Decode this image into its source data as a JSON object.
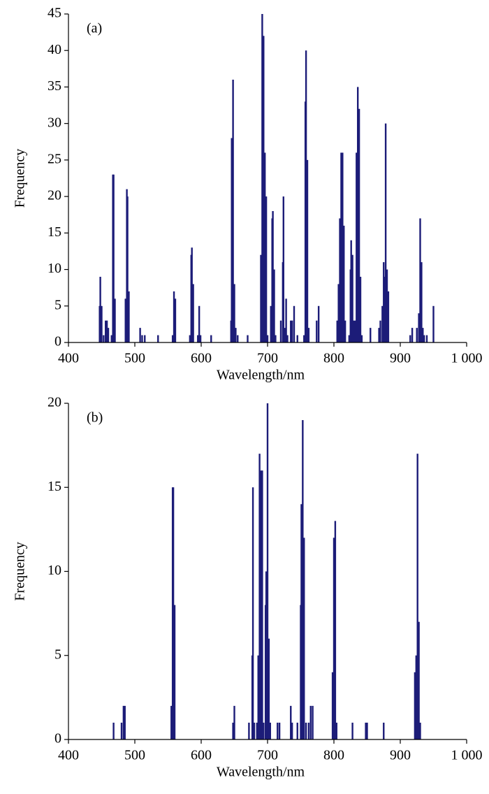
{
  "chart_data": [
    {
      "type": "bar",
      "annotation": "(a)",
      "xlabel": "Wavelength/nm",
      "ylabel": "Frequency",
      "color": "#1c1c78",
      "x": [
        447,
        448,
        450,
        453,
        456,
        458,
        460,
        465,
        467,
        468,
        470,
        486,
        488,
        489,
        491,
        508,
        511,
        515,
        535,
        557,
        559,
        561,
        583,
        585,
        586,
        588,
        595,
        597,
        599,
        615,
        645,
        646,
        648,
        650,
        652,
        655,
        670,
        690,
        692,
        694,
        696,
        698,
        700,
        705,
        707,
        708,
        710,
        712,
        720,
        723,
        724,
        726,
        728,
        730,
        735,
        737,
        740,
        745,
        755,
        757,
        758,
        760,
        762,
        774,
        777,
        805,
        807,
        809,
        811,
        813,
        815,
        817,
        823,
        825,
        826,
        828,
        830,
        832,
        834,
        836,
        838,
        840,
        842,
        855,
        868,
        870,
        873,
        875,
        877,
        878,
        880,
        882,
        915,
        918,
        925,
        928,
        930,
        932,
        934,
        936,
        940,
        950
      ],
      "values": [
        5,
        9,
        5,
        1,
        3,
        3,
        2,
        1,
        23,
        23,
        6,
        6,
        21,
        20,
        7,
        2,
        1,
        1,
        1,
        1,
        7,
        6,
        1,
        12,
        13,
        8,
        1,
        5,
        1,
        1,
        3,
        28,
        36,
        8,
        2,
        1,
        1,
        12,
        45,
        42,
        26,
        20,
        1,
        5,
        17,
        18,
        10,
        1,
        3,
        11,
        20,
        2,
        6,
        1,
        3,
        3,
        5,
        1,
        1,
        33,
        40,
        25,
        2,
        3,
        5,
        3,
        8,
        17,
        26,
        26,
        16,
        3,
        1,
        10,
        14,
        12,
        3,
        3,
        26,
        35,
        32,
        9,
        1,
        2,
        2,
        3,
        5,
        11,
        9,
        30,
        10,
        7,
        1,
        2,
        2,
        4,
        17,
        11,
        2,
        1,
        1,
        5
      ],
      "xlim": [
        400,
        1000
      ],
      "xticks": [
        400,
        500,
        600,
        700,
        800,
        900,
        {
          "value": 1000,
          "label": "1 000"
        }
      ],
      "ylim": [
        0,
        45
      ],
      "yticks": [
        0,
        5,
        10,
        15,
        20,
        25,
        30,
        35,
        40,
        45
      ]
    },
    {
      "type": "bar",
      "annotation": "(b)",
      "xlabel": "Wavelength/nm",
      "ylabel": "Frequency",
      "color": "#1c1c78",
      "x": [
        468,
        480,
        483,
        485,
        555,
        557,
        558,
        560,
        648,
        650,
        672,
        677,
        678,
        680,
        684,
        686,
        688,
        690,
        692,
        694,
        697,
        698,
        700,
        702,
        704,
        715,
        718,
        735,
        737,
        745,
        750,
        751,
        753,
        755,
        758,
        762,
        765,
        768,
        798,
        800,
        802,
        804,
        828,
        848,
        850,
        875,
        922,
        924,
        926,
        928,
        930
      ],
      "values": [
        1,
        1,
        2,
        2,
        2,
        15,
        15,
        8,
        1,
        2,
        1,
        5,
        15,
        1,
        1,
        5,
        17,
        16,
        16,
        1,
        8,
        10,
        20,
        6,
        1,
        1,
        1,
        2,
        1,
        1,
        8,
        14,
        19,
        12,
        1,
        1,
        2,
        2,
        4,
        12,
        13,
        1,
        1,
        1,
        1,
        1,
        4,
        5,
        17,
        7,
        1
      ],
      "xlim": [
        400,
        1000
      ],
      "xticks": [
        400,
        500,
        600,
        700,
        800,
        900,
        {
          "value": 1000,
          "label": "1 000"
        }
      ],
      "ylim": [
        0,
        20
      ],
      "yticks": [
        0,
        5,
        10,
        15,
        20
      ]
    }
  ]
}
